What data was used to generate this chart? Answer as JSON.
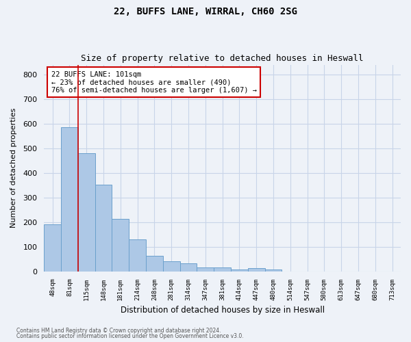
{
  "title1": "22, BUFFS LANE, WIRRAL, CH60 2SG",
  "title2": "Size of property relative to detached houses in Heswall",
  "xlabel": "Distribution of detached houses by size in Heswall",
  "ylabel": "Number of detached properties",
  "categories": [
    "48sqm",
    "81sqm",
    "115sqm",
    "148sqm",
    "181sqm",
    "214sqm",
    "248sqm",
    "281sqm",
    "314sqm",
    "347sqm",
    "381sqm",
    "414sqm",
    "447sqm",
    "480sqm",
    "514sqm",
    "547sqm",
    "580sqm",
    "613sqm",
    "647sqm",
    "680sqm",
    "713sqm"
  ],
  "values": [
    192,
    585,
    480,
    352,
    213,
    130,
    62,
    40,
    32,
    15,
    15,
    8,
    12,
    8,
    0,
    0,
    0,
    0,
    0,
    0,
    0
  ],
  "bar_color": "#adc8e6",
  "bar_edge_color": "#6aa0cc",
  "red_line_x": 1.5,
  "annotation_text": "22 BUFFS LANE: 101sqm\n← 23% of detached houses are smaller (490)\n76% of semi-detached houses are larger (1,607) →",
  "annotation_box_color": "#ffffff",
  "annotation_box_edge": "#cc0000",
  "ylim": [
    0,
    840
  ],
  "yticks": [
    0,
    100,
    200,
    300,
    400,
    500,
    600,
    700,
    800
  ],
  "footer1": "Contains HM Land Registry data © Crown copyright and database right 2024.",
  "footer2": "Contains public sector information licensed under the Open Government Licence v3.0.",
  "background_color": "#eef2f8",
  "grid_color": "#c8d4e8"
}
